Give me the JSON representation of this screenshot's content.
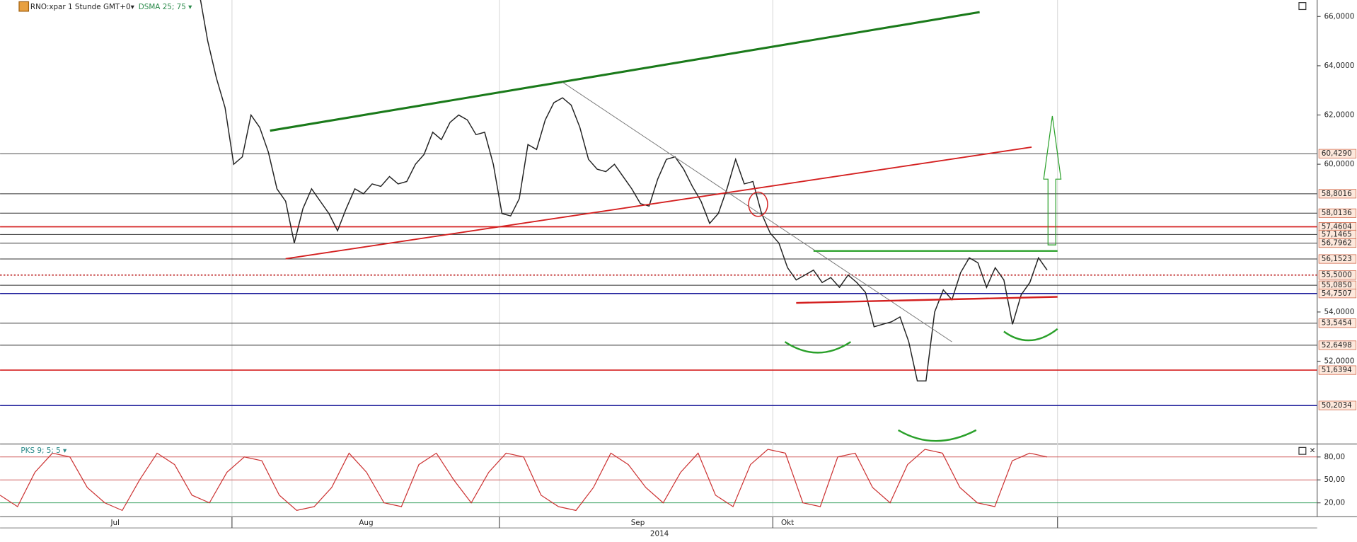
{
  "chart_data": [
    {
      "type": "line",
      "title": "RNO:xpar 1 Stunde GMT+0▾",
      "indicator": "DSMA 25; 75 ▾",
      "color": "#222222",
      "values": [
        67,
        65,
        63.5,
        62.3,
        60,
        60.3,
        62,
        61.5,
        60.5,
        59,
        58.5,
        56.8,
        58.2,
        59,
        58.5,
        58,
        57.3,
        58.2,
        59,
        58.8,
        59.2,
        59.1,
        59.5,
        59.2,
        59.3,
        60,
        60.4,
        61.3,
        61,
        61.7,
        62,
        61.8,
        61.2,
        61.3,
        60,
        58,
        57.9,
        58.6,
        60.8,
        60.6,
        61.8,
        62.5,
        62.7,
        62.4,
        61.5,
        60.2,
        59.8,
        59.7,
        60,
        59.5,
        59,
        58.4,
        58.3,
        59.4,
        60.2,
        60.3,
        59.8,
        59.1,
        58.5,
        57.6,
        58,
        59,
        60.2,
        59.2,
        59.3,
        58,
        57.2,
        56.8,
        55.8,
        55.3,
        55.5,
        55.7,
        55.2,
        55.4,
        55,
        55.5,
        55.2,
        54.8,
        53.4,
        53.5,
        53.6,
        53.8,
        52.8,
        51.2,
        51.2,
        54,
        54.9,
        54.5,
        55.6,
        56.2,
        56,
        55,
        55.8,
        55.3,
        53.5,
        54.7,
        55.2,
        56.2,
        55.7
      ],
      "ylim": [
        48.64,
        66.67
      ],
      "yticks": [
        {
          "value": 66,
          "label": "66,0000"
        },
        {
          "value": 64,
          "label": "64,0000"
        },
        {
          "value": 62,
          "label": "62,0000"
        },
        {
          "value": 60,
          "label": "60,0000"
        },
        {
          "value": 54,
          "label": "54,0000"
        },
        {
          "value": 52,
          "label": "52,0000"
        }
      ],
      "levels": [
        {
          "value": 60.429,
          "label": "60,4290",
          "color": "#333333"
        },
        {
          "value": 58.8016,
          "label": "58,8016",
          "color": "#333333"
        },
        {
          "value": 58.0136,
          "label": "58,0136",
          "color": "#333333"
        },
        {
          "value": 57.4604,
          "label": "57,4604",
          "color": "#d42020"
        },
        {
          "value": 57.1465,
          "label": "57,1465",
          "color": "#333333"
        },
        {
          "value": 56.7962,
          "label": "56,7962",
          "color": "#333333"
        },
        {
          "value": 56.1523,
          "label": "56,1523",
          "color": "#333333"
        },
        {
          "value": 55.5,
          "label": "55,5000",
          "color": "#c03030",
          "dash": true
        },
        {
          "value": 55.085,
          "label": "55,0850",
          "color": "#333333"
        },
        {
          "value": 54.7507,
          "label": "54,7507",
          "color": "#1a1a9a"
        },
        {
          "value": 53.5454,
          "label": "53,5454",
          "color": "#333333"
        },
        {
          "value": 52.6498,
          "label": "52,6498",
          "color": "#333333"
        },
        {
          "value": 51.6394,
          "label": "51,6394",
          "color": "#d42020"
        },
        {
          "value": 50.2034,
          "label": "50,2034",
          "color": "#1a1a9a"
        }
      ],
      "x_labels": [
        "Jul",
        "Aug",
        "Sep",
        "Okt"
      ],
      "year": "2014"
    },
    {
      "type": "line",
      "title": "PKS 9; 5; 5 ▾",
      "color": "#cc3333",
      "values": [
        30,
        15,
        60,
        85,
        80,
        40,
        20,
        10,
        50,
        85,
        70,
        30,
        20,
        60,
        80,
        75,
        30,
        10,
        15,
        40,
        85,
        60,
        20,
        15,
        70,
        85,
        50,
        20,
        60,
        85,
        80,
        30,
        15,
        10,
        40,
        85,
        70,
        40,
        20,
        60,
        85,
        30,
        15,
        70,
        90,
        85,
        20,
        15,
        80,
        85,
        40,
        20,
        70,
        90,
        85,
        40,
        20,
        15,
        75,
        85,
        80
      ],
      "ylim": [
        1.9,
        94.7
      ],
      "yticks": [
        {
          "value": 80,
          "label": "80,00"
        },
        {
          "value": 50,
          "label": "50,00"
        },
        {
          "value": 20,
          "label": "20,00"
        }
      ]
    }
  ]
}
